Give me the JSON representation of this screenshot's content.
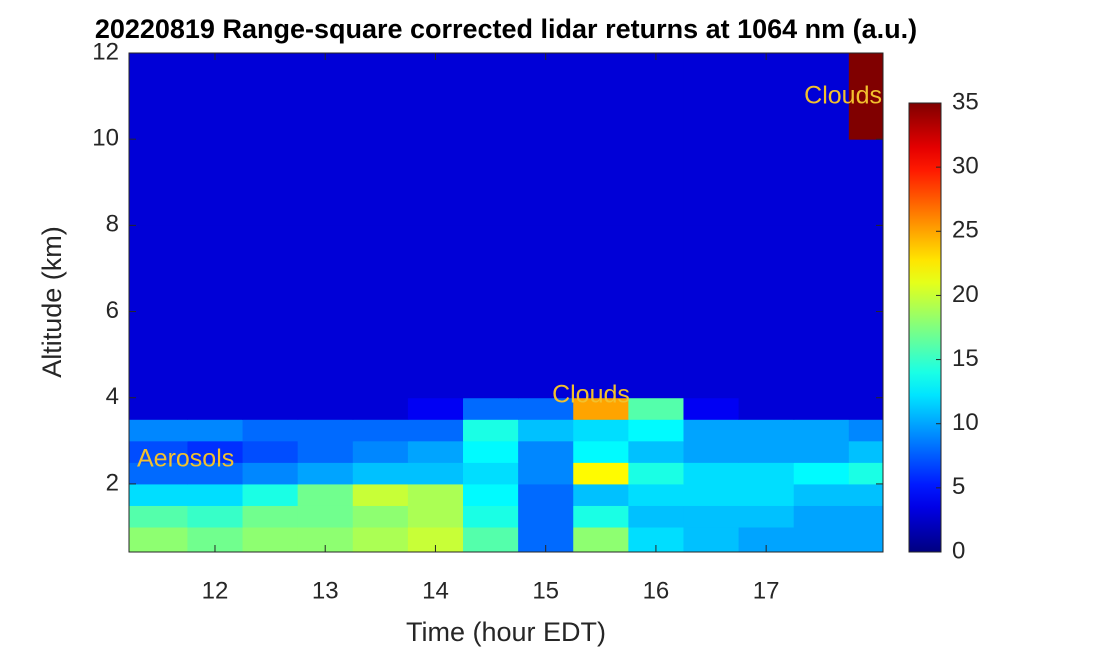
{
  "chart_data": {
    "type": "heatmap",
    "title": "20220819  Range-square corrected lidar returns at 1064 nm (a.u.)",
    "x_label": "Time (hour EDT)",
    "y_label": "Altitude (km)",
    "x_bins": [
      11.22,
      11.75,
      12.25,
      12.75,
      13.25,
      13.75,
      14.25,
      14.75,
      15.25,
      15.75,
      16.25,
      16.75,
      17.25,
      17.75,
      18.06
    ],
    "y_bins": [
      0.42,
      1,
      1.5,
      2,
      2.5,
      3,
      3.5,
      4,
      6,
      8,
      10,
      12
    ],
    "values": [
      [
        18,
        17,
        18,
        18,
        19,
        20,
        16,
        8,
        18,
        12,
        11,
        10,
        10,
        10
      ],
      [
        16,
        15,
        17,
        17,
        18,
        19,
        14,
        8,
        14,
        11,
        11,
        11,
        10,
        10
      ],
      [
        12,
        12,
        14,
        17,
        20,
        19,
        13,
        8,
        11,
        12,
        12,
        12,
        11,
        11
      ],
      [
        8,
        8,
        9,
        10,
        11,
        11,
        12,
        9,
        22,
        14,
        12,
        12,
        13,
        14
      ],
      [
        7,
        6,
        7,
        8,
        9,
        10,
        13,
        9,
        13,
        11,
        10,
        10,
        10,
        11
      ],
      [
        9,
        9,
        8,
        8,
        8,
        8,
        14,
        11,
        12,
        13,
        10,
        10,
        10,
        9
      ],
      [
        3,
        3,
        3,
        3,
        3,
        4,
        8,
        8,
        25,
        16,
        4,
        3,
        3,
        3
      ],
      [
        3,
        3,
        3,
        3,
        3,
        3,
        3,
        3,
        3,
        3,
        3,
        3,
        3,
        3
      ],
      [
        3,
        3,
        3,
        3,
        3,
        3,
        3,
        3,
        3,
        3,
        3,
        3,
        3,
        3
      ],
      [
        3,
        3,
        3,
        3,
        3,
        3,
        3,
        3,
        3,
        3,
        3,
        3,
        3,
        3
      ],
      [
        3,
        3,
        3,
        3,
        3,
        3,
        3,
        3,
        3,
        3,
        3,
        3,
        3,
        35
      ]
    ],
    "colormap": "jet",
    "xlim": [
      11.22,
      18.06
    ],
    "ylim": [
      0.42,
      12
    ],
    "xticks": [
      12,
      13,
      14,
      15,
      16,
      17
    ],
    "yticks": [
      2,
      4,
      6,
      8,
      10,
      12
    ],
    "clim": [
      0,
      35
    ],
    "cticks": [
      0,
      5,
      10,
      15,
      20,
      25,
      30,
      35
    ],
    "annotations": [
      "Clouds",
      "Clouds",
      "Aerosols"
    ]
  }
}
